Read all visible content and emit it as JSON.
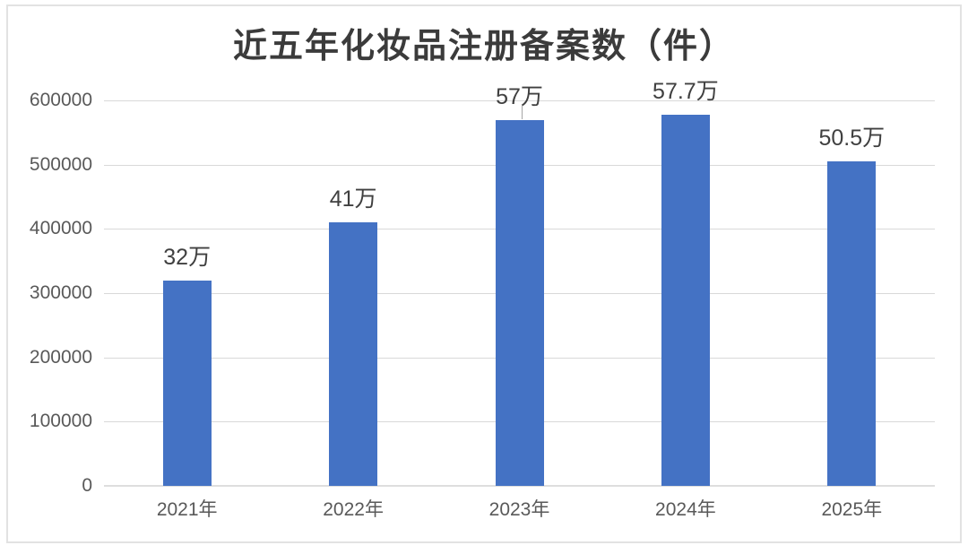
{
  "chart_title": "近五年化妆品注册备案数（件）",
  "colors": {
    "bar": "#4472C4",
    "gridline": "#D9D9D9",
    "axis_line": "#DEDEDE",
    "tick_label": "#595959",
    "title_text": "#3B3B3B",
    "data_label": "#404040",
    "leader_line": "#A6A6A6",
    "frame_border": "#E2E2E2",
    "background": "#FFFFFF"
  },
  "chart_data": {
    "type": "bar",
    "title": "近五年化妆品注册备案数（件）",
    "categories": [
      "2021年",
      "2022年",
      "2023年",
      "2024年",
      "2025年"
    ],
    "values": [
      320000,
      410000,
      570000,
      577000,
      505000
    ],
    "data_labels": [
      "32万",
      "41万",
      "57万",
      "57.7万",
      "50.5万"
    ],
    "xlabel": "",
    "ylabel": "",
    "ylim": [
      0,
      600000
    ],
    "ytick_interval": 100000,
    "yticks": [
      0,
      100000,
      200000,
      300000,
      400000,
      500000,
      600000
    ],
    "grid": true,
    "legend": false,
    "leader_line_on_index": 2
  }
}
